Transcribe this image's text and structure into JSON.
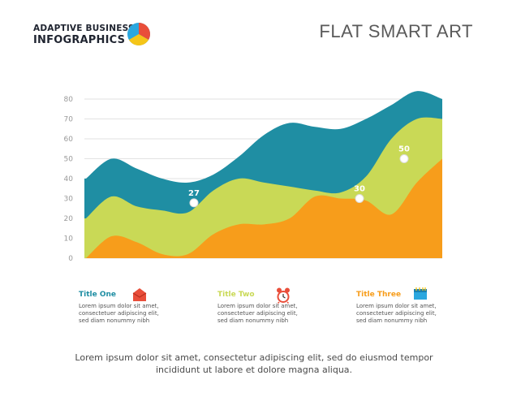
{
  "header": {
    "brand_line1": "ADAPTIVE BUSINESS",
    "brand_line2": "INFOGRAPHICS",
    "title": "FLAT SMART ART"
  },
  "colors": {
    "teal": "#1f8ea3",
    "lime": "#c9d956",
    "orange": "#f79d1b",
    "logo_red": "#e94e3a",
    "logo_blue": "#2aa7df",
    "logo_yellow": "#f5c518",
    "grid": "#e2e2e2",
    "tick": "#9a9a9a"
  },
  "chart_data": {
    "type": "area",
    "style": "stacked smooth wave areas",
    "ylim": [
      0,
      80
    ],
    "y_ticks": [
      0,
      10,
      20,
      30,
      40,
      50,
      60,
      70,
      80
    ],
    "grid": true,
    "series": [
      {
        "id": "teal",
        "color": "#1f8ea3",
        "top_profile": [
          40,
          40,
          50,
          45,
          40,
          38,
          42,
          51,
          62,
          68,
          66,
          65,
          70,
          77,
          84,
          80
        ]
      },
      {
        "id": "lime",
        "color": "#c9d956",
        "top_profile": [
          20,
          20,
          31,
          26,
          24,
          23,
          34,
          40,
          38,
          36,
          34,
          33,
          41,
          60,
          70,
          70
        ]
      },
      {
        "id": "orange",
        "color": "#f79d1b",
        "top_profile": [
          0,
          0,
          11,
          8,
          2,
          2,
          12,
          17,
          17,
          20,
          31,
          30,
          29,
          22,
          38,
          50
        ]
      }
    ],
    "markers": [
      {
        "label": "27",
        "value": 27
      },
      {
        "label": "30",
        "value": 30
      },
      {
        "label": "50",
        "value": 50
      }
    ]
  },
  "legend": [
    {
      "title": "Title One",
      "color": "#1f8ea3",
      "icon": "envelope-icon",
      "desc": [
        "Lorem ipsum dolor sit amet,",
        "consectetuer adipiscing elit,",
        "sed diam nonummy nibh"
      ]
    },
    {
      "title": "Title Two",
      "color": "#c9d956",
      "icon": "alarm-clock-icon",
      "desc": [
        "Lorem ipsum dolor sit amet,",
        "consectetuer adipiscing elit,",
        "sed diam nonummy nibh"
      ]
    },
    {
      "title": "Title Three",
      "color": "#f79d1b",
      "icon": "calendar-icon",
      "desc": [
        "Lorem ipsum dolor sit amet,",
        "consectetuer adipiscing elit,",
        "sed diam nonummy nibh"
      ]
    }
  ],
  "footer": {
    "line1": "Lorem ipsum dolor sit amet, consectetur adipiscing elit, sed do eiusmod tempor",
    "line2": "incididunt ut labore et dolore magna aliqua."
  }
}
